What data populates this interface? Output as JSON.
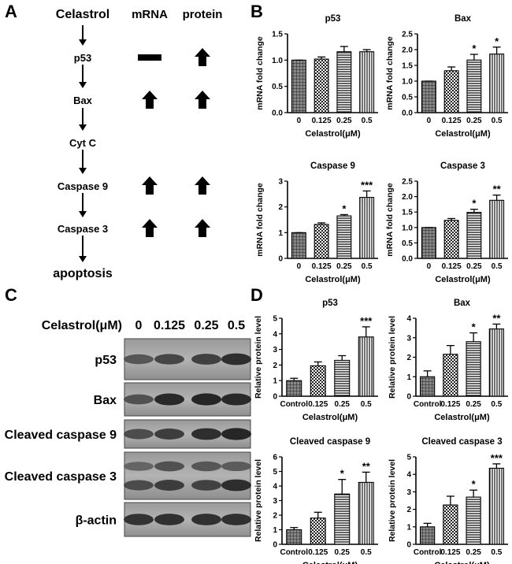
{
  "panel_labels": {
    "a": "A",
    "b": "B",
    "c": "C",
    "d": "D"
  },
  "pathway": {
    "headers": {
      "start": "Celastrol",
      "mrna": "mRNA",
      "protein": "protein"
    },
    "steps": [
      {
        "label": "p53",
        "mrna": "none",
        "protein": "up"
      },
      {
        "label": "Bax",
        "mrna": "up",
        "protein": "up"
      },
      {
        "label": "Cyt C",
        "mrna": "",
        "protein": ""
      },
      {
        "label": "Caspase 9",
        "mrna": "up",
        "protein": "up"
      },
      {
        "label": "Caspase 3",
        "mrna": "up",
        "protein": "up"
      }
    ],
    "end": "apoptosis"
  },
  "blot": {
    "header_label": "Celastrol(μM)",
    "doses": [
      "0",
      "0.125",
      "0.25",
      "0.5"
    ],
    "rows": [
      "p53",
      "Bax",
      "Cleaved caspase 9",
      "Cleaved caspase 3",
      "β-actin"
    ]
  },
  "chart_data": [
    {
      "type": "bar",
      "panel": "B",
      "title": "p53",
      "categories": [
        "0",
        "0.125",
        "0.25",
        "0.5"
      ],
      "values": [
        1.0,
        1.02,
        1.16,
        1.16
      ],
      "errors": [
        0.0,
        0.04,
        0.1,
        0.04
      ],
      "significance": [
        "",
        "",
        "",
        ""
      ],
      "xlabel": "Celastrol(μM)",
      "ylabel": "mRNA fold change",
      "ylim": [
        0,
        1.5
      ],
      "yticks": [
        "0.0",
        "0.5",
        "1.0",
        "1.5"
      ]
    },
    {
      "type": "bar",
      "panel": "B",
      "title": "Bax",
      "categories": [
        "0",
        "0.125",
        "0.25",
        "0.5"
      ],
      "values": [
        1.0,
        1.33,
        1.67,
        1.86
      ],
      "errors": [
        0.0,
        0.12,
        0.18,
        0.22
      ],
      "significance": [
        "",
        "",
        "*",
        "*"
      ],
      "xlabel": "Celastrol(μM)",
      "ylabel": "mRNA fold change",
      "ylim": [
        0,
        2.5
      ],
      "yticks": [
        "0.0",
        "0.5",
        "1.0",
        "1.5",
        "2.0",
        "2.5"
      ]
    },
    {
      "type": "bar",
      "panel": "B",
      "title": "Caspase 9",
      "categories": [
        "0",
        "0.125",
        "0.25",
        "0.5"
      ],
      "values": [
        1.0,
        1.32,
        1.65,
        2.37
      ],
      "errors": [
        0.0,
        0.06,
        0.05,
        0.25
      ],
      "significance": [
        "",
        "",
        "*",
        "***"
      ],
      "xlabel": "Celastrol(μM)",
      "ylabel": "mRNA fold change",
      "ylim": [
        0,
        3
      ],
      "yticks": [
        "0",
        "1",
        "2",
        "3"
      ]
    },
    {
      "type": "bar",
      "panel": "B",
      "title": "Caspase 3",
      "categories": [
        "0",
        "0.125",
        "0.25",
        "0.5"
      ],
      "values": [
        1.0,
        1.23,
        1.49,
        1.88
      ],
      "errors": [
        0.0,
        0.06,
        0.1,
        0.17
      ],
      "significance": [
        "",
        "",
        "*",
        "**"
      ],
      "xlabel": "Celastrol(μM)",
      "ylabel": "mRNA fold change",
      "ylim": [
        0,
        2.5
      ],
      "yticks": [
        "0.0",
        "0.5",
        "1.0",
        "1.5",
        "2.0",
        "2.5"
      ]
    },
    {
      "type": "bar",
      "panel": "D",
      "title": "p53",
      "categories": [
        "Control",
        "0.125",
        "0.25",
        "0.5"
      ],
      "values": [
        1.0,
        1.95,
        2.3,
        3.8
      ],
      "errors": [
        0.15,
        0.25,
        0.3,
        0.65
      ],
      "significance": [
        "",
        "",
        "",
        "***"
      ],
      "xlabel": "Celastrol(μM)",
      "ylabel": "Relative protein level",
      "ylim": [
        0,
        5
      ],
      "yticks": [
        "0",
        "1",
        "2",
        "3",
        "4",
        "5"
      ]
    },
    {
      "type": "bar",
      "panel": "D",
      "title": "Bax",
      "categories": [
        "Control",
        "0.125",
        "0.25",
        "0.5"
      ],
      "values": [
        1.0,
        2.15,
        2.8,
        3.45
      ],
      "errors": [
        0.3,
        0.45,
        0.45,
        0.25
      ],
      "significance": [
        "",
        "",
        "*",
        "**"
      ],
      "xlabel": "Celastrol(μM)",
      "ylabel": "Relative protein level",
      "ylim": [
        0,
        4
      ],
      "yticks": [
        "0",
        "1",
        "2",
        "3",
        "4"
      ]
    },
    {
      "type": "bar",
      "panel": "D",
      "title": "Cleaved caspase 9",
      "categories": [
        "Control",
        "0.125",
        "0.25",
        "0.5"
      ],
      "values": [
        1.0,
        1.8,
        3.45,
        4.25
      ],
      "errors": [
        0.15,
        0.4,
        1.0,
        0.7
      ],
      "significance": [
        "",
        "",
        "*",
        "**"
      ],
      "xlabel": "Celastrol(μM)",
      "ylabel": "Relative protein level",
      "ylim": [
        0,
        6
      ],
      "yticks": [
        "0",
        "1",
        "2",
        "3",
        "4",
        "5",
        "6"
      ]
    },
    {
      "type": "bar",
      "panel": "D",
      "title": "Cleaved caspase 3",
      "categories": [
        "Control",
        "0.125",
        "0.25",
        "0.5"
      ],
      "values": [
        1.0,
        2.25,
        2.7,
        4.35
      ],
      "errors": [
        0.2,
        0.5,
        0.4,
        0.25
      ],
      "significance": [
        "",
        "",
        "*",
        "***"
      ],
      "xlabel": "Celastrol(μM)",
      "ylabel": "Relative protein level",
      "ylim": [
        0,
        5
      ],
      "yticks": [
        "0",
        "1",
        "2",
        "3",
        "4",
        "5"
      ]
    }
  ]
}
